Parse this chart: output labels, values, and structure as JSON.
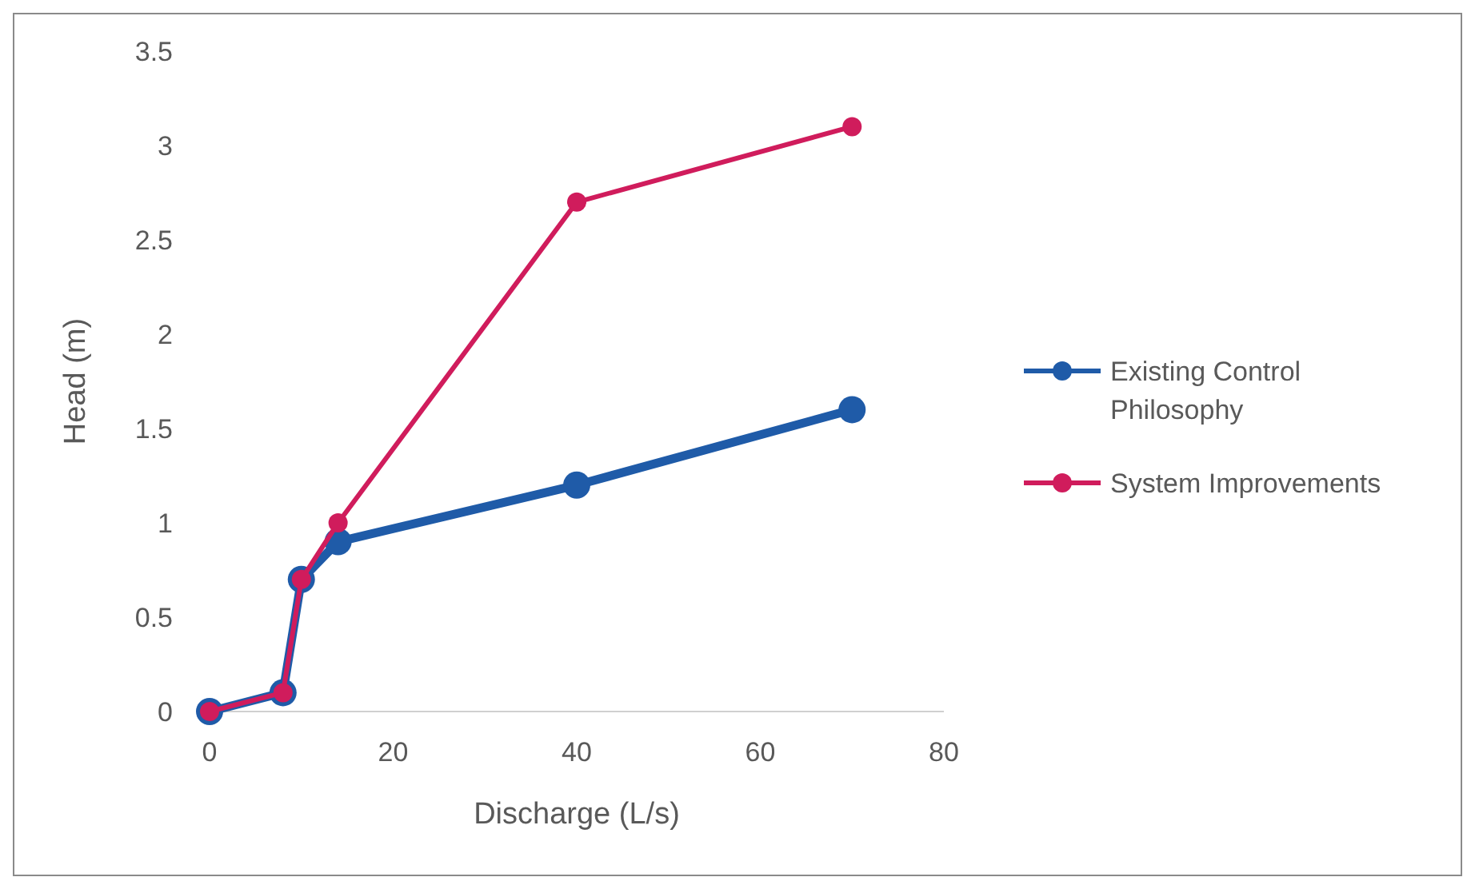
{
  "chart_data": {
    "type": "line",
    "xlabel": "Discharge (L/s)",
    "ylabel": "Head (m)",
    "xlim": [
      0,
      80
    ],
    "xticks": [
      0,
      20,
      40,
      60,
      80
    ],
    "ylim": [
      0,
      3.5
    ],
    "yticks": [
      0,
      0.5,
      1,
      1.5,
      2,
      2.5,
      3,
      3.5
    ],
    "marker": "circle",
    "line_style": "solid",
    "legend": "right",
    "grid": false,
    "series": [
      {
        "name": "Existing Control Philosophy",
        "color": "#1f5ba8",
        "x": [
          0,
          8,
          10,
          14,
          40,
          70
        ],
        "values": [
          0,
          0.1,
          0.7,
          0.9,
          1.2,
          1.6
        ]
      },
      {
        "name": "System Improvements",
        "color": "#d01c5c",
        "x": [
          0,
          8,
          10,
          14,
          40,
          70
        ],
        "values": [
          0,
          0.1,
          0.7,
          1,
          2.7,
          3.1
        ]
      }
    ]
  }
}
